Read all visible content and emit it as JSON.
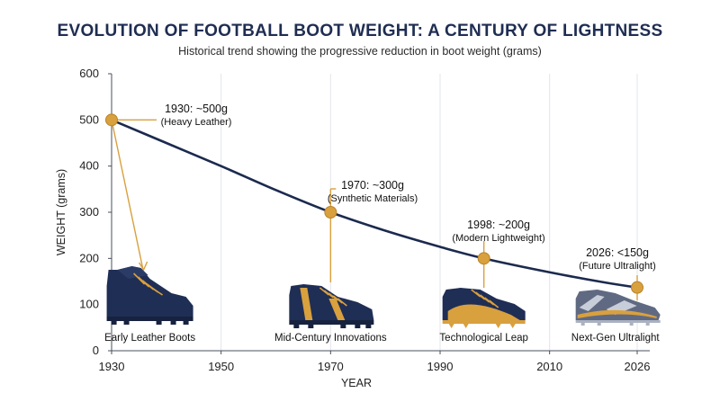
{
  "chart_data": {
    "type": "line",
    "title": "EVOLUTION OF FOOTBALL BOOT WEIGHT: A CENTURY OF LIGHTNESS",
    "subtitle": "Historical trend showing the progressive reduction in boot weight (grams)",
    "xlabel": "YEAR",
    "ylabel": "WEIGHT (grams)",
    "xlim": [
      1930,
      2026
    ],
    "ylim": [
      0,
      600
    ],
    "x_ticks": [
      1930,
      1950,
      1970,
      1990,
      2010,
      2026
    ],
    "y_ticks": [
      0,
      100,
      200,
      300,
      400,
      500,
      600
    ],
    "grid": "vertical",
    "line_color": "#1b2a4e",
    "marker_color": "#d9a03e",
    "points": [
      {
        "x": 1930,
        "y": 500,
        "label": "1930: ~500g",
        "sublabel": "(Heavy Leather)"
      },
      {
        "x": 1970,
        "y": 300,
        "label": "1970: ~300g",
        "sublabel": "(Synthetic Materials)"
      },
      {
        "x": 1998,
        "y": 200,
        "label": "1998: ~200g",
        "sublabel": "(Modern Lightweight)"
      },
      {
        "x": 2026,
        "y": 137,
        "label": "2026: <150g",
        "sublabel": "(Future Ultralight)"
      }
    ],
    "curve": [
      {
        "x": 1930,
        "y": 500
      },
      {
        "x": 1940,
        "y": 450
      },
      {
        "x": 1950,
        "y": 400
      },
      {
        "x": 1960,
        "y": 348
      },
      {
        "x": 1970,
        "y": 300
      },
      {
        "x": 1980,
        "y": 260
      },
      {
        "x": 1990,
        "y": 225
      },
      {
        "x": 1998,
        "y": 200
      },
      {
        "x": 2010,
        "y": 170
      },
      {
        "x": 2020,
        "y": 148
      },
      {
        "x": 2026,
        "y": 137
      }
    ],
    "boots": [
      {
        "year": 1937,
        "caption": "Early Leather Boots",
        "style": "leather",
        "upper": "#1f2e55",
        "accent": "#d9a03e",
        "sole": "#1f2e55"
      },
      {
        "year": 1970,
        "caption": "Mid-Century Innovations",
        "style": "classic",
        "upper": "#1f2e55",
        "accent": "#d9a03e",
        "sole": "#1f2e55"
      },
      {
        "year": 1998,
        "caption": "Technological Leap",
        "style": "modern",
        "upper": "#1f2e55",
        "accent": "#d9a03e",
        "sole": "#d9a03e"
      },
      {
        "year": 2022,
        "caption": "Next-Gen Ultralight",
        "style": "ultralight",
        "upper": "#5f6a82",
        "accent": "#d9a03e",
        "sole": "#aab2c2"
      }
    ]
  }
}
